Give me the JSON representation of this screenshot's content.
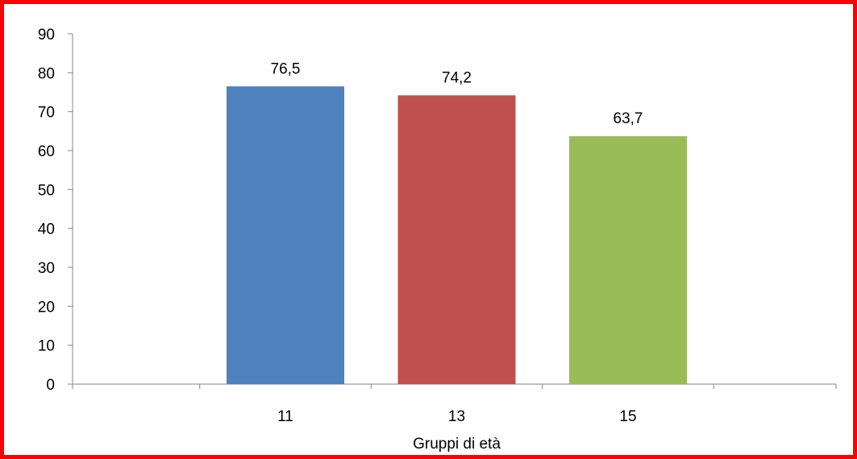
{
  "chart_data": {
    "type": "bar",
    "categories": [
      "11",
      "13",
      "15"
    ],
    "values": [
      76.5,
      74.2,
      63.7
    ],
    "data_labels": [
      "76,5",
      "74,2",
      "63,7"
    ],
    "colors": [
      "#4f81bd",
      "#c0504d",
      "#9bbb59"
    ],
    "title": "",
    "xlabel": "Gruppi di età",
    "ylabel": "",
    "ylim": [
      0,
      90
    ],
    "yticks": [
      0,
      10,
      20,
      30,
      40,
      50,
      60,
      70,
      80,
      90
    ],
    "grid": false,
    "legend": "none"
  },
  "frame": {
    "border_color": "#ff0000"
  }
}
